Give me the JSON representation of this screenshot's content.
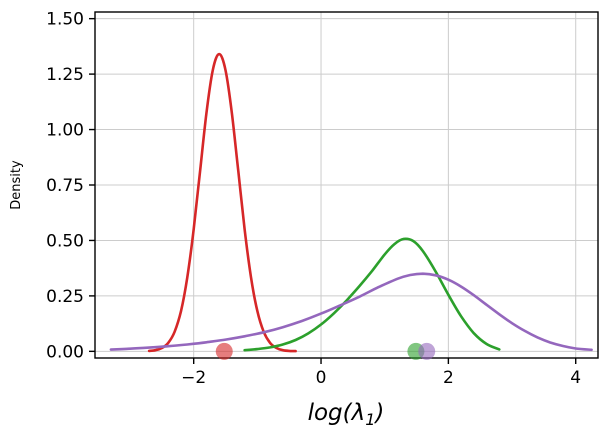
{
  "figure": {
    "background": "#ffffff"
  },
  "chart_data": {
    "type": "line",
    "title": "",
    "xlabel": "log(λ1)",
    "xlabel_parts": {
      "main": "log(λ",
      "sub": "1",
      "close": ")"
    },
    "ylabel": "Density",
    "xlim": [
      -3.55,
      4.35
    ],
    "ylim": [
      0,
      1.5
    ],
    "xticks": [
      -2,
      0,
      2,
      4
    ],
    "xtick_labels": [
      "−2",
      "0",
      "2",
      "4"
    ],
    "yticks": [
      0,
      0.25,
      0.5,
      0.75,
      1,
      1.25,
      1.5
    ],
    "ytick_labels": [
      "0.00",
      "0.25",
      "0.50",
      "0.75",
      "1.00",
      "1.25",
      "1.50"
    ],
    "grid": true,
    "grid_color": "#cccccc",
    "axis_color": "#000000",
    "legend": null,
    "series": [
      {
        "name": "red-density",
        "color": "#d62728",
        "x": [
          -2.7,
          -2.6,
          -2.5,
          -2.4,
          -2.3,
          -2.2,
          -2.1,
          -2.0,
          -1.9,
          -1.8,
          -1.7,
          -1.6,
          -1.5,
          -1.4,
          -1.3,
          -1.2,
          -1.1,
          -1.0,
          -0.9,
          -0.8,
          -0.7,
          -0.6,
          -0.5,
          -0.4
        ],
        "y": [
          0.002,
          0.005,
          0.015,
          0.038,
          0.088,
          0.181,
          0.334,
          0.551,
          0.813,
          1.073,
          1.268,
          1.34,
          1.268,
          1.073,
          0.813,
          0.551,
          0.334,
          0.181,
          0.088,
          0.038,
          0.015,
          0.005,
          0.002,
          0.001
        ]
      },
      {
        "name": "green-density",
        "color": "#2ca02c",
        "x": [
          -1.2,
          -1.0,
          -0.8,
          -0.6,
          -0.4,
          -0.2,
          0.0,
          0.2,
          0.4,
          0.6,
          0.8,
          1.0,
          1.15,
          1.3,
          1.45,
          1.6,
          1.8,
          2.0,
          2.2,
          2.4,
          2.6,
          2.8
        ],
        "y": [
          0.005,
          0.01,
          0.018,
          0.031,
          0.051,
          0.081,
          0.121,
          0.171,
          0.229,
          0.293,
          0.362,
          0.437,
          0.483,
          0.507,
          0.497,
          0.452,
          0.36,
          0.255,
          0.158,
          0.082,
          0.033,
          0.009
        ]
      },
      {
        "name": "purple-density",
        "color": "#9467bd",
        "x": [
          -3.3,
          -3.0,
          -2.7,
          -2.4,
          -2.1,
          -1.8,
          -1.5,
          -1.2,
          -0.9,
          -0.6,
          -0.3,
          0.0,
          0.3,
          0.6,
          0.9,
          1.2,
          1.4,
          1.6,
          1.8,
          2.0,
          2.2,
          2.4,
          2.6,
          2.8,
          3.0,
          3.2,
          3.4,
          3.6,
          3.8,
          4.0,
          4.25
        ],
        "y": [
          0.008,
          0.012,
          0.017,
          0.023,
          0.031,
          0.041,
          0.053,
          0.068,
          0.086,
          0.109,
          0.137,
          0.17,
          0.207,
          0.246,
          0.289,
          0.327,
          0.344,
          0.35,
          0.343,
          0.323,
          0.292,
          0.253,
          0.21,
          0.167,
          0.127,
          0.092,
          0.063,
          0.04,
          0.024,
          0.013,
          0.007
        ]
      }
    ],
    "markers": [
      {
        "name": "red-point-marker",
        "color": "#d62728",
        "x": -1.52,
        "y": 0
      },
      {
        "name": "green-point-marker",
        "color": "#2ca02c",
        "x": 1.49,
        "y": 0
      },
      {
        "name": "purple-point-marker",
        "color": "#9467bd",
        "x": 1.66,
        "y": 0
      }
    ],
    "marker_alpha": 0.6,
    "marker_radius": 8.5,
    "line_width": 2.6
  }
}
